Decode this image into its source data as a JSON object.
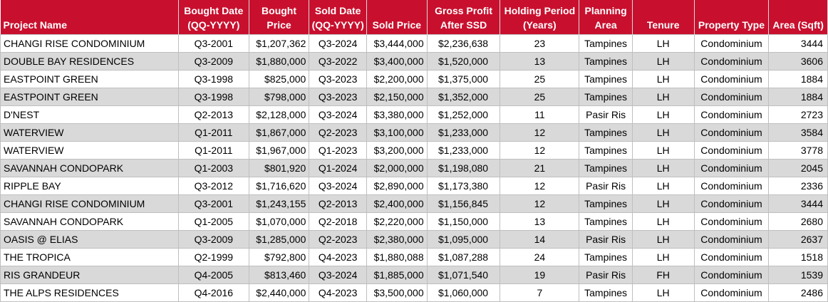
{
  "headers": [
    [
      "Project Name"
    ],
    [
      "Bought Date",
      "(QQ-YYYY)"
    ],
    [
      "Bought",
      "Price"
    ],
    [
      "Sold Date",
      "(QQ-YYYY)"
    ],
    [
      "Sold Price"
    ],
    [
      "Gross Profit",
      "After SSD"
    ],
    [
      "Holding Period",
      "(Years)"
    ],
    [
      "Planning",
      "Area"
    ],
    [
      "Tenure"
    ],
    [
      "Property Type"
    ],
    [
      "Area (Sqft)"
    ]
  ],
  "rows": [
    [
      "CHANGI RISE CONDOMINIUM",
      "Q3-2001",
      "$1,207,362",
      "Q3-2024",
      "$3,444,000",
      "$2,236,638",
      "23",
      "Tampines",
      "LH",
      "Condominium",
      "3444"
    ],
    [
      "DOUBLE BAY RESIDENCES",
      "Q3-2009",
      "$1,880,000",
      "Q3-2022",
      "$3,400,000",
      "$1,520,000",
      "13",
      "Tampines",
      "LH",
      "Condominium",
      "3606"
    ],
    [
      "EASTPOINT GREEN",
      "Q3-1998",
      "$825,000",
      "Q3-2023",
      "$2,200,000",
      "$1,375,000",
      "25",
      "Tampines",
      "LH",
      "Condominium",
      "1884"
    ],
    [
      "EASTPOINT GREEN",
      "Q3-1998",
      "$798,000",
      "Q3-2023",
      "$2,150,000",
      "$1,352,000",
      "25",
      "Tampines",
      "LH",
      "Condominium",
      "1884"
    ],
    [
      "D'NEST",
      "Q2-2013",
      "$2,128,000",
      "Q3-2024",
      "$3,380,000",
      "$1,252,000",
      "11",
      "Pasir Ris",
      "LH",
      "Condominium",
      "2723"
    ],
    [
      "WATERVIEW",
      "Q1-2011",
      "$1,867,000",
      "Q2-2023",
      "$3,100,000",
      "$1,233,000",
      "12",
      "Tampines",
      "LH",
      "Condominium",
      "3584"
    ],
    [
      "WATERVIEW",
      "Q1-2011",
      "$1,967,000",
      "Q1-2023",
      "$3,200,000",
      "$1,233,000",
      "12",
      "Tampines",
      "LH",
      "Condominium",
      "3778"
    ],
    [
      "SAVANNAH CONDOPARK",
      "Q1-2003",
      "$801,920",
      "Q1-2024",
      "$2,000,000",
      "$1,198,080",
      "21",
      "Tampines",
      "LH",
      "Condominium",
      "2045"
    ],
    [
      "RIPPLE BAY",
      "Q3-2012",
      "$1,716,620",
      "Q3-2024",
      "$2,890,000",
      "$1,173,380",
      "12",
      "Pasir Ris",
      "LH",
      "Condominium",
      "2336"
    ],
    [
      "CHANGI RISE CONDOMINIUM",
      "Q3-2001",
      "$1,243,155",
      "Q2-2013",
      "$2,400,000",
      "$1,156,845",
      "12",
      "Tampines",
      "LH",
      "Condominium",
      "3444"
    ],
    [
      "SAVANNAH CONDOPARK",
      "Q1-2005",
      "$1,070,000",
      "Q2-2018",
      "$2,220,000",
      "$1,150,000",
      "13",
      "Tampines",
      "LH",
      "Condominium",
      "2680"
    ],
    [
      "OASIS @ ELIAS",
      "Q3-2009",
      "$1,285,000",
      "Q2-2023",
      "$2,380,000",
      "$1,095,000",
      "14",
      "Pasir Ris",
      "LH",
      "Condominium",
      "2637"
    ],
    [
      "THE TROPICA",
      "Q2-1999",
      "$792,800",
      "Q4-2023",
      "$1,880,088",
      "$1,087,288",
      "24",
      "Tampines",
      "LH",
      "Condominium",
      "1518"
    ],
    [
      "RIS GRANDEUR",
      "Q4-2005",
      "$813,460",
      "Q3-2024",
      "$1,885,000",
      "$1,071,540",
      "19",
      "Pasir Ris",
      "FH",
      "Condominium",
      "1539"
    ],
    [
      "THE ALPS RESIDENCES",
      "Q4-2016",
      "$2,440,000",
      "Q4-2023",
      "$3,500,000",
      "$1,060,000",
      "7",
      "Tampines",
      "LH",
      "Condominium",
      "2486"
    ]
  ]
}
